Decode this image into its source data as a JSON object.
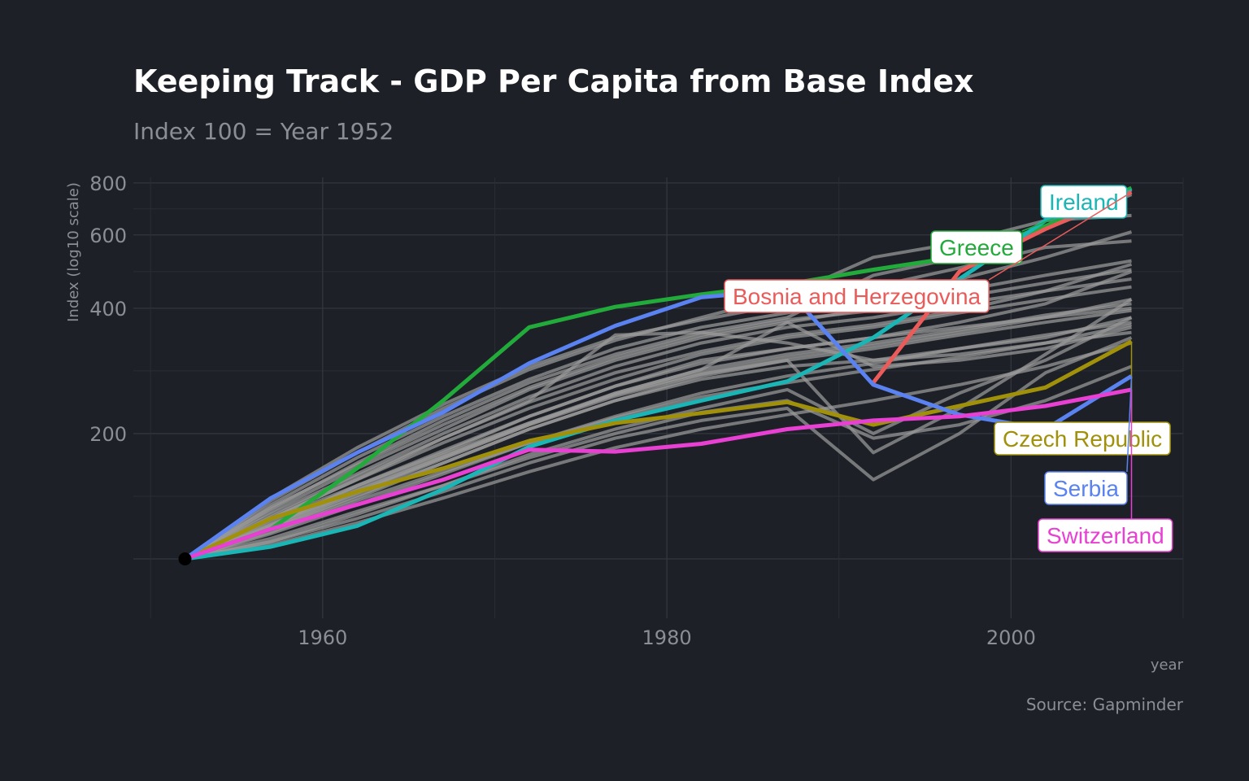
{
  "chart_data": {
    "type": "line",
    "title": "Keeping Track - GDP Per Capita from Base Index",
    "subtitle": "Index 100 = Year 1952",
    "xlabel": "year",
    "ylabel": "Index (log10 scale)",
    "caption": "Source: Gapminder",
    "x_ticks": [
      1960,
      1980,
      2000
    ],
    "y_ticks": [
      200,
      400,
      600,
      800
    ],
    "xlim": [
      1949,
      2010
    ],
    "ylim": [
      72,
      825
    ],
    "grid": true,
    "legend": "none",
    "x": [
      1952,
      1957,
      1962,
      1967,
      1972,
      1977,
      1982,
      1987,
      1992,
      1997,
      2002,
      2007
    ],
    "series": [
      {
        "name": "Greece",
        "color": "#22aa3a",
        "values": [
          100,
          118,
          165,
          240,
          360,
          403,
          432,
          457,
          495,
          532,
          630,
          778
        ]
      },
      {
        "name": "Ireland",
        "color": "#1ab5b5",
        "values": [
          100,
          107,
          120,
          147,
          186,
          215,
          240,
          267,
          340,
          470,
          650,
          772
        ]
      },
      {
        "name": "Bosnia and Herzegovina",
        "color": "#ea5b5a",
        "values": [
          null,
          null,
          null,
          null,
          null,
          null,
          null,
          null,
          265,
          490,
          620,
          760
        ]
      },
      {
        "name": "Czech Republic",
        "color": "#a0900a",
        "values": [
          100,
          125,
          145,
          165,
          192,
          212,
          224,
          238,
          210,
          233,
          258,
          333
        ]
      },
      {
        "name": "Serbia",
        "color": "#5a82f0",
        "values": [
          100,
          140,
          180,
          225,
          295,
          363,
          425,
          443,
          262,
          222,
          205,
          275
        ]
      },
      {
        "name": "Switzerland",
        "color": "#e840d2",
        "values": [
          100,
          118,
          135,
          155,
          183,
          181,
          189,
          205,
          215,
          220,
          233,
          255
        ]
      }
    ],
    "background_series": [
      [
        100,
        120,
        150,
        180,
        220,
        260,
        300,
        320,
        340,
        360,
        380,
        400
      ],
      [
        100,
        125,
        155,
        190,
        230,
        270,
        310,
        340,
        360,
        390,
        420,
        450
      ],
      [
        100,
        118,
        140,
        170,
        205,
        240,
        275,
        300,
        320,
        345,
        370,
        395
      ],
      [
        100,
        128,
        160,
        200,
        245,
        290,
        330,
        360,
        380,
        410,
        440,
        470
      ],
      [
        100,
        115,
        135,
        160,
        190,
        220,
        250,
        275,
        295,
        320,
        345,
        370
      ],
      [
        100,
        130,
        165,
        205,
        255,
        300,
        340,
        370,
        400,
        440,
        480,
        520
      ],
      [
        100,
        122,
        148,
        178,
        212,
        250,
        285,
        310,
        330,
        355,
        385,
        410
      ],
      [
        100,
        135,
        175,
        220,
        270,
        320,
        360,
        390,
        425,
        470,
        530,
        610
      ],
      [
        100,
        140,
        185,
        235,
        290,
        340,
        375,
        410,
        450,
        500,
        560,
        580
      ],
      [
        100,
        138,
        180,
        230,
        285,
        335,
        380,
        430,
        530,
        575,
        650,
        668
      ],
      [
        100,
        132,
        170,
        215,
        265,
        310,
        350,
        380,
        480,
        530,
        620,
        750
      ],
      [
        100,
        112,
        130,
        150,
        175,
        200,
        225,
        240,
        195,
        210,
        240,
        290
      ],
      [
        100,
        110,
        125,
        145,
        170,
        195,
        215,
        230,
        155,
        200,
        280,
        340
      ],
      [
        100,
        120,
        145,
        175,
        210,
        250,
        285,
        370,
        290,
        300,
        320,
        360
      ],
      [
        100,
        125,
        155,
        195,
        240,
        345,
        350,
        330,
        300,
        320,
        340,
        380
      ],
      [
        100,
        118,
        142,
        170,
        205,
        240,
        270,
        290,
        300,
        310,
        330,
        350
      ],
      [
        100,
        110,
        128,
        150,
        178,
        205,
        230,
        255,
        200,
        250,
        300,
        380
      ],
      [
        100,
        124,
        150,
        182,
        220,
        260,
        295,
        320,
        340,
        370,
        410,
        490
      ],
      [
        100,
        126,
        158,
        195,
        238,
        280,
        315,
        345,
        365,
        395,
        440,
        510
      ],
      [
        100,
        116,
        138,
        162,
        190,
        218,
        245,
        265,
        285,
        305,
        330,
        365
      ],
      [
        100,
        121,
        146,
        176,
        212,
        248,
        280,
        305,
        325,
        350,
        380,
        420
      ],
      [
        100,
        133,
        168,
        210,
        258,
        305,
        345,
        375,
        395,
        425,
        460,
        495
      ],
      [
        100,
        108,
        122,
        140,
        162,
        185,
        205,
        222,
        240,
        262,
        290,
        330
      ],
      [
        100,
        119,
        144,
        174,
        210,
        246,
        278,
        300,
        180,
        230,
        310,
        420
      ]
    ]
  }
}
